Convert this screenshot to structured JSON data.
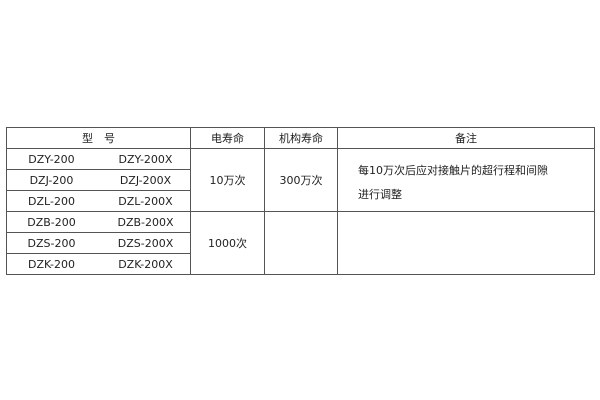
{
  "headers": {
    "model": "型　号",
    "electric_life": "电寿命",
    "mechanical_life": "机构寿命",
    "remark": "备注"
  },
  "rows": [
    {
      "a": "DZY-200",
      "b": "DZY-200X"
    },
    {
      "a": "DZJ-200",
      "b": "DZJ-200X"
    },
    {
      "a": "DZL-200",
      "b": "DZL-200X"
    },
    {
      "a": "DZB-200",
      "b": "DZB-200X"
    },
    {
      "a": "DZS-200",
      "b": "DZS-200X"
    },
    {
      "a": "DZK-200",
      "b": "DZK-200X"
    }
  ],
  "group1": {
    "electric_life": "10万次",
    "mechanical_life": "300万次",
    "remark_line1": "每10万次后应对接触片的超行程和间隙",
    "remark_line2": "进行调整"
  },
  "group2": {
    "electric_life": "1000次"
  }
}
